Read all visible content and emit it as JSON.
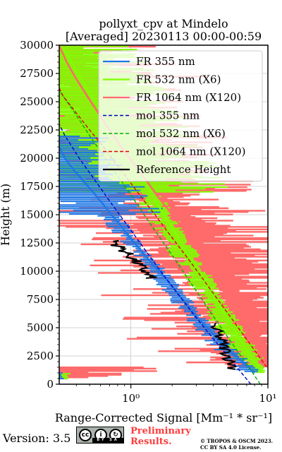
{
  "chart_data": {
    "type": "line",
    "title": "pollyxt_cpv at Mindelo",
    "subtitle": "[Averaged] 20230113 00:00-00:59",
    "xlabel": "Range-Corrected Signal [Mm⁻¹ * sr⁻¹]",
    "ylabel": "Height (m)",
    "xscale": "log",
    "xlim": [
      0.3,
      10
    ],
    "ylim": [
      0,
      30000
    ],
    "xticks": [
      {
        "value": 1,
        "label": "10⁰"
      },
      {
        "value": 10,
        "label": "10¹"
      }
    ],
    "yticks": [
      0,
      2500,
      5000,
      7500,
      10000,
      12500,
      15000,
      17500,
      20000,
      22500,
      25000,
      27500,
      30000
    ],
    "ytick_labels": [
      "0",
      "2500",
      "5000",
      "7500",
      "10000",
      "12500",
      "15000",
      "17500",
      "20000",
      "22500",
      "25000",
      "27500",
      "30000"
    ],
    "grid": true,
    "legend_position": "top-right",
    "series": [
      {
        "name": "FR 355 nm",
        "color": "#1f77e4",
        "style": "solid",
        "x": [
          8.0,
          6.5,
          5.2,
          4.3,
          3.6,
          3.0,
          2.6,
          2.2,
          1.9,
          1.6,
          1.35,
          1.15,
          0.98,
          0.85,
          0.72,
          0.62,
          0.53,
          0.45,
          0.38,
          0.33,
          0.3
        ],
        "y": [
          1000,
          2000,
          3000,
          4000,
          5000,
          6000,
          7000,
          8000,
          9000,
          10000,
          11000,
          12000,
          13000,
          14000,
          15000,
          16000,
          17000,
          18000,
          19000,
          20000,
          21000
        ]
      },
      {
        "name": "FR 532 nm (X6)",
        "color": "#7fff00",
        "style": "solid",
        "x": [
          9.0,
          7.5,
          6.2,
          5.2,
          4.4,
          3.7,
          3.1,
          2.6,
          2.2,
          1.85,
          1.55,
          1.3,
          1.1,
          0.92,
          0.78,
          0.66,
          0.55,
          0.46,
          0.39,
          0.33,
          0.3
        ],
        "y": [
          1000,
          2500,
          4000,
          5500,
          7000,
          8500,
          10000,
          11500,
          13000,
          14500,
          16000,
          17500,
          19000,
          20500,
          22000,
          23500,
          25000,
          26500,
          28000,
          29500,
          30000
        ]
      },
      {
        "name": "FR 1064 nm (X120)",
        "color": "#ff6a6a",
        "style": "solid",
        "x": [
          9.5,
          8.5,
          7.8,
          7.0,
          6.0,
          5.0,
          4.0,
          3.2,
          2.5,
          2.0,
          1.6,
          1.3,
          1.05,
          0.85,
          0.7,
          0.58,
          0.48,
          0.4,
          0.34,
          0.3
        ],
        "y": [
          1500,
          3000,
          4500,
          6000,
          7500,
          9000,
          10500,
          12000,
          13500,
          15000,
          16500,
          18000,
          19500,
          21000,
          22500,
          24000,
          25500,
          27000,
          28500,
          30000
        ]
      },
      {
        "name": "mol 355 nm",
        "color": "#0000cc",
        "style": "dashed",
        "x": [
          7.5,
          5.5,
          4.0,
          2.95,
          2.2,
          1.65,
          1.25,
          0.95,
          0.72,
          0.55,
          0.42,
          0.33,
          0.3
        ],
        "y": [
          0,
          2000,
          4000,
          6000,
          8000,
          10000,
          12000,
          14000,
          16000,
          18000,
          20000,
          22000,
          23000
        ]
      },
      {
        "name": "mol 532 nm (X6)",
        "color": "#00b000",
        "style": "dashed",
        "x": [
          8.8,
          6.8,
          5.2,
          4.0,
          3.1,
          2.4,
          1.85,
          1.42,
          1.1,
          0.85,
          0.65,
          0.5,
          0.39,
          0.3
        ],
        "y": [
          0,
          2000,
          4000,
          6000,
          8000,
          10000,
          12000,
          14000,
          16000,
          18000,
          20000,
          22000,
          24000,
          26000
        ]
      },
      {
        "name": "mol 1064 nm (X120)",
        "color": "#e00000",
        "style": "dashed",
        "x": [
          9.8,
          8.0,
          6.5,
          5.3,
          4.3,
          3.5,
          2.85,
          2.3,
          1.85,
          1.5,
          1.2,
          0.97,
          0.78,
          0.63,
          0.5,
          0.4,
          0.32,
          0.3
        ],
        "y": [
          1500,
          3000,
          4500,
          6000,
          7500,
          9000,
          10500,
          12000,
          13500,
          15000,
          16500,
          18000,
          19500,
          21000,
          22500,
          24000,
          25500,
          26200
        ]
      },
      {
        "name": "Reference Height",
        "color": "#000000",
        "style": "solid",
        "x": [
          0.75,
          0.8,
          0.9,
          1.0,
          1.1,
          1.2,
          1.3,
          1.45
        ],
        "y": [
          12700,
          12300,
          11800,
          11300,
          10800,
          10300,
          9800,
          9300
        ],
        "x2": [
          3.9,
          4.2,
          4.5,
          4.8,
          5.1,
          5.4,
          5.8
        ],
        "y2": [
          5400,
          4700,
          4000,
          3300,
          2600,
          1900,
          1200
        ]
      }
    ]
  },
  "footer": {
    "version": "Version: 3.5",
    "license_badge_text": "BY   SA",
    "preliminary_line1": "Preliminary",
    "preliminary_line2": "Results.",
    "copyright_line1": "© TROPOS & OSCM 2023.",
    "copyright_line2": "CC BY SA 4.0 License."
  }
}
